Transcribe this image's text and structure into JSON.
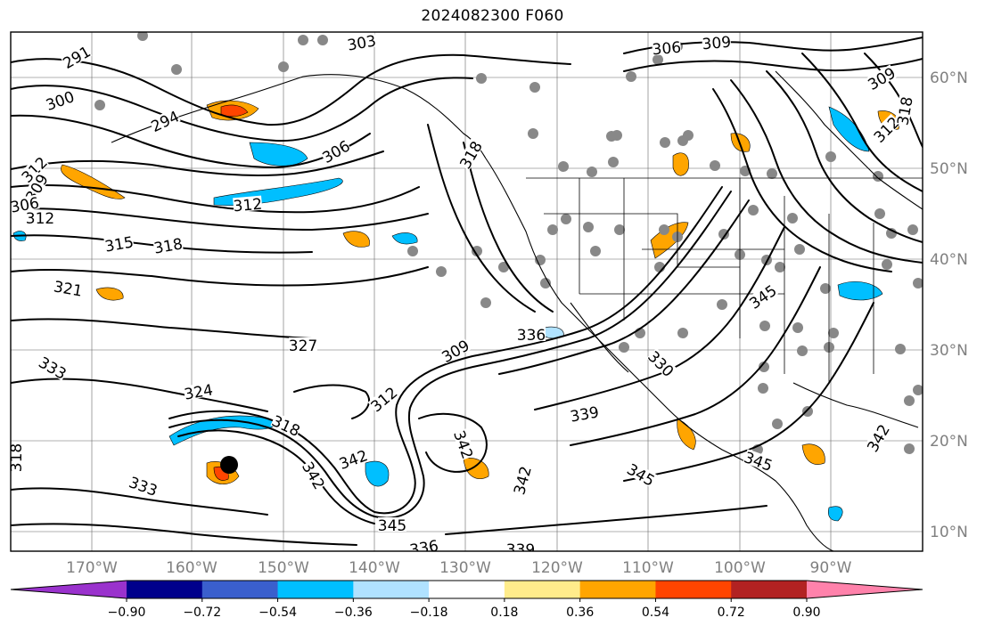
{
  "title": "2024082300 F060",
  "longitude_labels": [
    "170°W",
    "160°W",
    "150°W",
    "140°W",
    "130°W",
    "120°W",
    "110°W",
    "100°W",
    "90°W"
  ],
  "latitude_labels": [
    "60°N",
    "50°N",
    "40°N",
    "30°N",
    "20°N",
    "10°N"
  ],
  "contour_labels": [
    "291",
    "300",
    "294",
    "303",
    "306",
    "309",
    "306",
    "312",
    "318",
    "312",
    "315",
    "318",
    "321",
    "312",
    "309",
    "306",
    "309",
    "312",
    "318",
    "327",
    "333",
    "324",
    "318",
    "309",
    "312",
    "336",
    "339",
    "345",
    "342",
    "345",
    "342",
    "336",
    "339",
    "342",
    "318",
    "333",
    "342",
    "345",
    "345",
    "330",
    "342"
  ],
  "colorbar": {
    "ticks": [
      "−0.90",
      "−0.72",
      "−0.54",
      "−0.36",
      "−0.18",
      "0.18",
      "0.36",
      "0.54",
      "0.72",
      "0.90"
    ],
    "colors": [
      "#9a32cd",
      "#00008b",
      "#3a5fcd",
      "#00bfff",
      "#b0e2ff",
      "#ffffff",
      "#ffec8b",
      "#ffa500",
      "#ff4500",
      "#b22222",
      "#ff82ab"
    ]
  },
  "storm_marker": "black-dot-icon"
}
